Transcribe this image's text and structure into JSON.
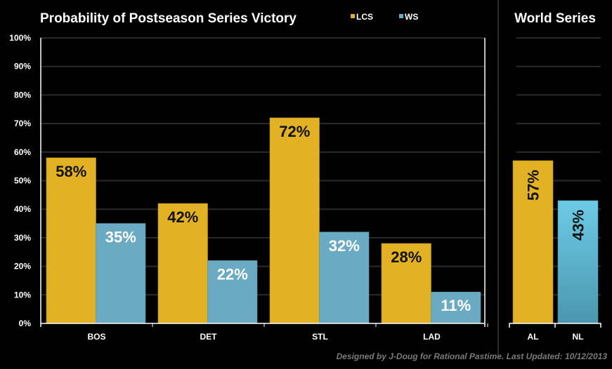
{
  "chart_data": [
    {
      "type": "bar",
      "title": "Probability of Postseason Series Victory",
      "categories": [
        "BOS",
        "DET",
        "STL",
        "LAD"
      ],
      "series": [
        {
          "name": "LCS",
          "color": "#E3B224",
          "values": [
            58,
            42,
            72,
            28
          ],
          "labels": [
            "58%",
            "42%",
            "72%",
            "28%"
          ]
        },
        {
          "name": "WS",
          "color": "#6AAAC3",
          "values": [
            35,
            22,
            32,
            11
          ],
          "labels": [
            "35%",
            "22%",
            "32%",
            "11%"
          ]
        }
      ],
      "ylim": [
        0,
        100
      ],
      "yticks": [
        "0%",
        "10%",
        "20%",
        "30%",
        "40%",
        "50%",
        "60%",
        "70%",
        "80%",
        "90%",
        "100%"
      ],
      "grid": true,
      "legend": "top"
    },
    {
      "type": "bar",
      "title": "World Series",
      "categories": [
        "AL",
        "NL"
      ],
      "values": [
        57,
        43
      ],
      "labels": [
        "57%",
        "43%"
      ],
      "colors": [
        "#E3B224",
        "#5FB4D0"
      ],
      "ylim": [
        0,
        100
      ],
      "grid": true
    }
  ],
  "footer": "Designed by J-Doug for Rational Pastime. Last Updated: 10/12/2013"
}
